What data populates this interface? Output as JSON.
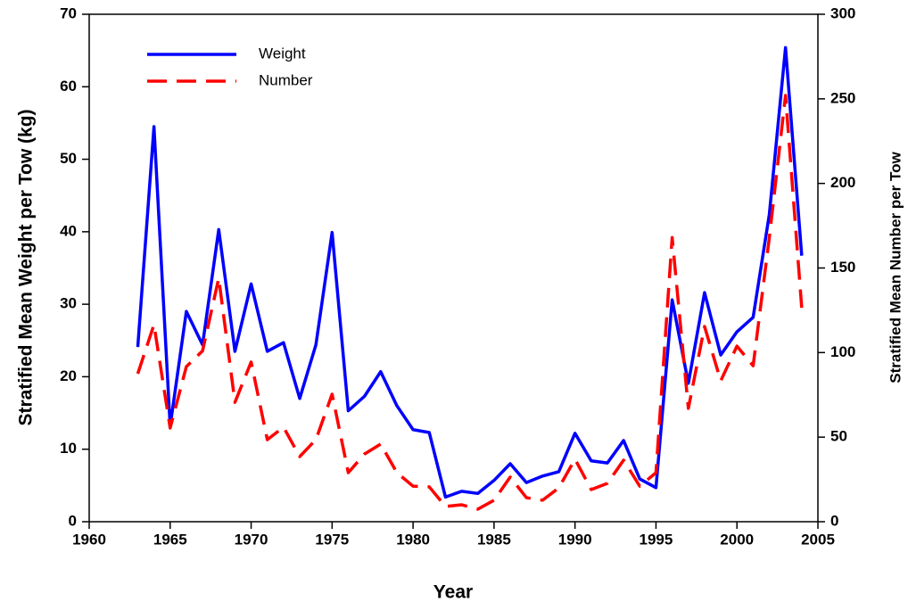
{
  "chart_data": {
    "type": "line",
    "xlabel": "Year",
    "ylabel": "Stratified Mean Weight per Tow (kg)",
    "y2label": "Stratified Mean Number per Tow",
    "x": [
      1963,
      1964,
      1965,
      1966,
      1967,
      1968,
      1969,
      1970,
      1971,
      1972,
      1973,
      1974,
      1975,
      1976,
      1977,
      1978,
      1979,
      1980,
      1981,
      1982,
      1983,
      1984,
      1985,
      1986,
      1987,
      1988,
      1989,
      1990,
      1991,
      1992,
      1993,
      1994,
      1995,
      1996,
      1997,
      1998,
      1999,
      2000,
      2001,
      2002,
      2003,
      2004
    ],
    "series": [
      {
        "name": "Weight",
        "color": "#0000ff",
        "line_style": "solid",
        "values": [
          24.1,
          54.5,
          13.2,
          29,
          24.4,
          40.3,
          23.5,
          32.8,
          23.5,
          24.7,
          17,
          24.4,
          39.9,
          15.3,
          17.3,
          20.7,
          16,
          12.7,
          12.3,
          3.4,
          4.2,
          3.9,
          5.7,
          8,
          5.4,
          6.3,
          6.9,
          12.2,
          8.4,
          8.1,
          11.2,
          5.9,
          4.7,
          30.6,
          19.1,
          31.6,
          23,
          26.2,
          28.2,
          42.4,
          65.4,
          36.7
        ]
      },
      {
        "name": "Number",
        "color": "#ff0000",
        "line_style": "dashed",
        "axis": "y2",
        "values": [
          87.5,
          116.5,
          55.4,
          91.7,
          101,
          144,
          70.6,
          94.4,
          48.5,
          55.9,
          38.5,
          48.5,
          75.4,
          29,
          40,
          45.9,
          29,
          21,
          20.6,
          9,
          10,
          7.4,
          12.7,
          26.4,
          14.2,
          12.7,
          20,
          37,
          19,
          22.7,
          36.4,
          21,
          29,
          168,
          67,
          115.4,
          83.3,
          103.8,
          92.2,
          168,
          252,
          126.5
        ]
      }
    ],
    "xlim": [
      1960,
      2005
    ],
    "xticks": [
      1960,
      1965,
      1970,
      1975,
      1980,
      1985,
      1990,
      1995,
      2000,
      2005
    ],
    "ylim": [
      0,
      70
    ],
    "yticks": [
      0,
      10,
      20,
      30,
      40,
      50,
      60,
      70
    ],
    "y2lim": [
      0,
      300
    ],
    "y2ticks": [
      0,
      50,
      100,
      150,
      200,
      250,
      300
    ],
    "legend": "upper left"
  }
}
